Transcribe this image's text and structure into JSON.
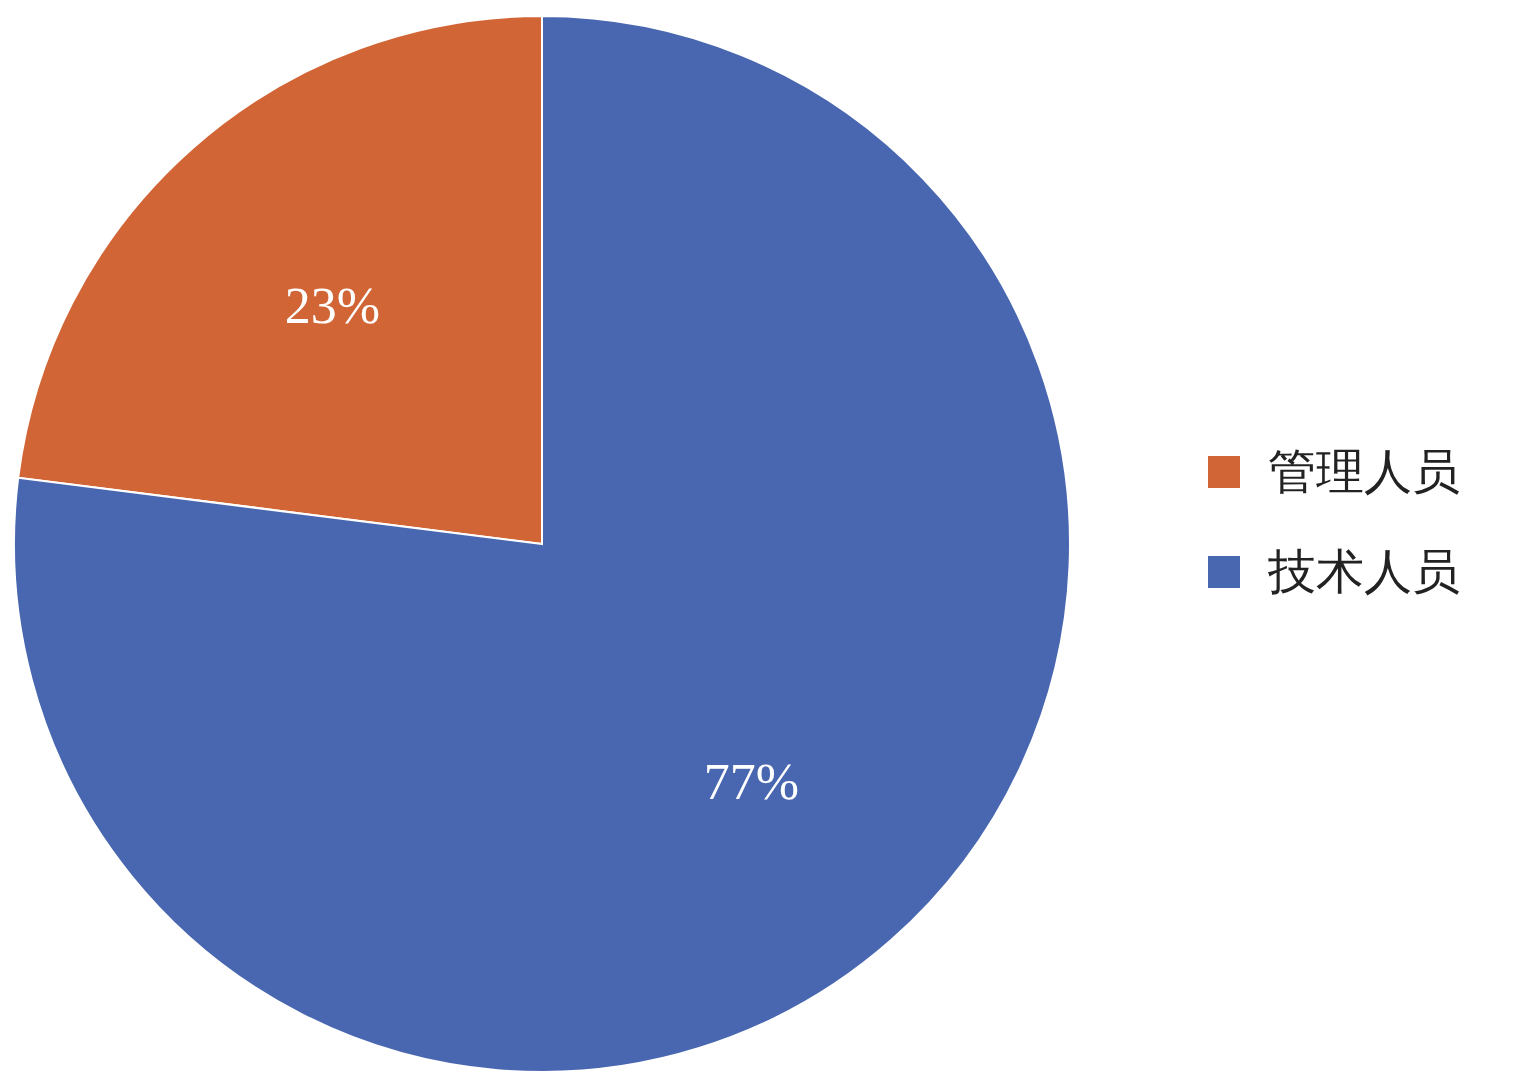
{
  "chart_data": {
    "type": "pie",
    "categories": [
      "管理人员",
      "技术人员"
    ],
    "values": [
      23,
      77
    ],
    "colors": [
      "#d26536",
      "#4967b0"
    ],
    "value_labels": [
      "23%",
      "77%"
    ],
    "legend": "right"
  }
}
